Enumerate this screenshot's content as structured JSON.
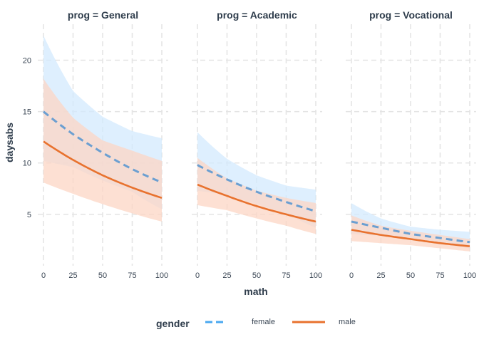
{
  "chart_data": {
    "type": "line",
    "facet_var": "prog",
    "facets": [
      {
        "label": "prog = General",
        "series": [
          {
            "name": "female",
            "x": [
              0,
              25,
              50,
              75,
              100
            ],
            "y": [
              15.0,
              12.8,
              11.0,
              9.4,
              8.1
            ],
            "lower": [
              10.2,
              9.6,
              8.3,
              7.2,
              5.5
            ],
            "upper": [
              22.4,
              17.0,
              14.5,
              13.1,
              12.4
            ]
          },
          {
            "name": "male",
            "x": [
              0,
              25,
              50,
              75,
              100
            ],
            "y": [
              12.1,
              10.3,
              8.8,
              7.6,
              6.6
            ],
            "lower": [
              8.1,
              7.0,
              6.0,
              5.1,
              4.3
            ],
            "upper": [
              18.2,
              14.4,
              12.2,
              11.2,
              10.2
            ]
          }
        ]
      },
      {
        "label": "prog = Academic",
        "series": [
          {
            "name": "female",
            "x": [
              0,
              25,
              50,
              75,
              100
            ],
            "y": [
              9.8,
              8.4,
              7.2,
              6.2,
              5.3
            ],
            "lower": [
              7.3,
              6.9,
              6.0,
              5.1,
              3.7
            ],
            "upper": [
              13.0,
              10.4,
              8.8,
              7.8,
              7.4
            ]
          },
          {
            "name": "male",
            "x": [
              0,
              25,
              50,
              75,
              100
            ],
            "y": [
              7.9,
              6.8,
              5.8,
              5.0,
              4.3
            ],
            "lower": [
              5.9,
              5.4,
              4.6,
              3.9,
              3.1
            ],
            "upper": [
              10.5,
              8.5,
              7.3,
              6.6,
              6.1
            ]
          }
        ]
      },
      {
        "label": "prog = Vocational",
        "series": [
          {
            "name": "female",
            "x": [
              0,
              25,
              50,
              75,
              100
            ],
            "y": [
              4.3,
              3.7,
              3.1,
              2.7,
              2.3
            ],
            "lower": [
              3.1,
              2.9,
              2.6,
              2.2,
              1.7
            ],
            "upper": [
              6.1,
              4.6,
              3.8,
              3.5,
              3.3
            ]
          },
          {
            "name": "male",
            "x": [
              0,
              25,
              50,
              75,
              100
            ],
            "y": [
              3.5,
              3.0,
              2.6,
              2.2,
              1.9
            ],
            "lower": [
              2.4,
              2.2,
              2.0,
              1.7,
              1.4
            ],
            "upper": [
              4.9,
              3.9,
              3.4,
              3.0,
              2.6
            ]
          }
        ]
      }
    ],
    "xlabel": "math",
    "ylabel": "daysabs",
    "xlim": [
      0,
      100
    ],
    "ylim": [
      0,
      23.5
    ],
    "x_ticks": [
      0,
      25,
      50,
      75,
      100
    ],
    "y_ticks": [
      5,
      10,
      15,
      20
    ],
    "grid": true,
    "legend": {
      "title": "gender",
      "position": "bottom",
      "entries": [
        {
          "name": "female",
          "line_style": "dashed"
        },
        {
          "name": "male",
          "line_style": "solid"
        }
      ]
    },
    "colors": {
      "female_line": "#6b9fd1",
      "female_band": "#d3e9fd",
      "male_line": "#e8722e",
      "male_band": "#fcd6c4",
      "legend_female_line": "#4aa8f0"
    }
  }
}
